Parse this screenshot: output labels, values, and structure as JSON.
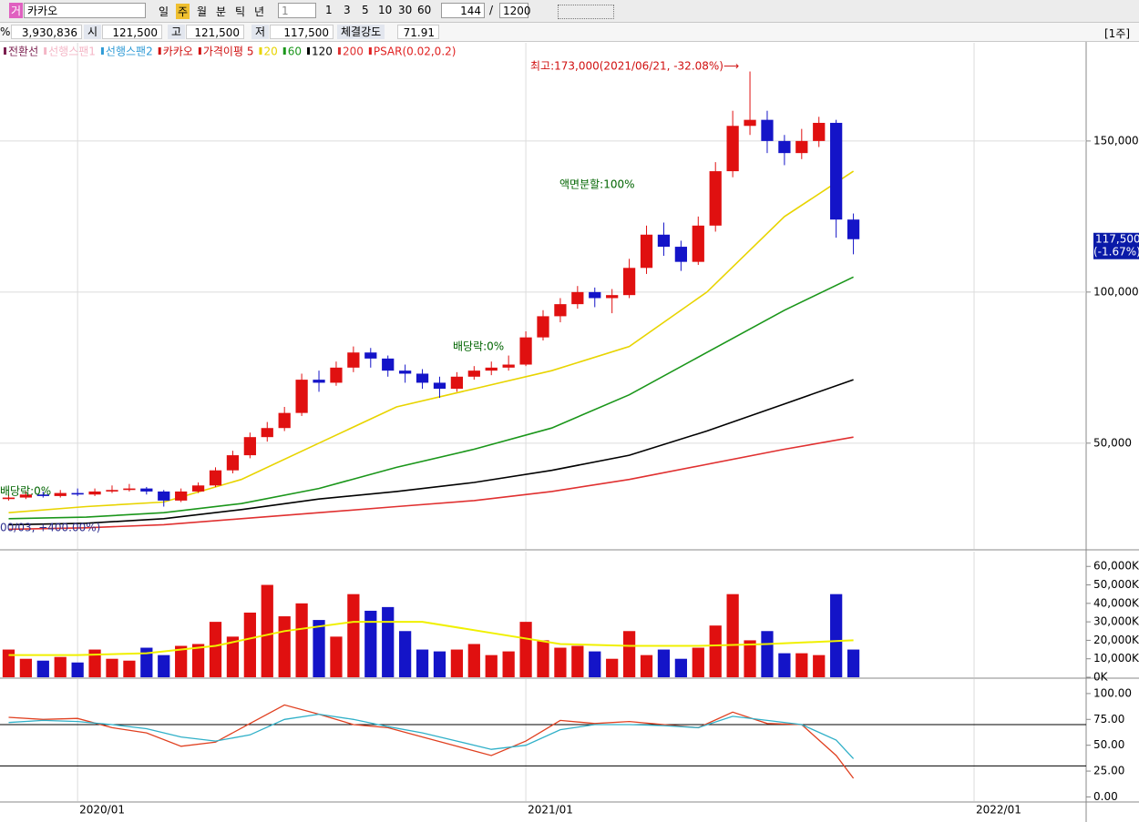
{
  "toolbar": {
    "market": "거",
    "name": "카카오",
    "periods": [
      "일",
      "주",
      "월",
      "분",
      "틱",
      "년"
    ],
    "multiplier": "1",
    "intervals": [
      "1",
      "3",
      "5",
      "10",
      "30",
      "60"
    ],
    "count": "144",
    "separator": "/",
    "total": "1200"
  },
  "info_bar": {
    "pct": "%",
    "volume": "3,930,836",
    "open_label": "시",
    "open": "121,500",
    "high_label": "고",
    "high": "121,500",
    "low_label": "저",
    "low": "117,500",
    "strength_label": "체결강도",
    "strength": "71.91",
    "unit": "[1주]"
  },
  "chart_data": [
    {
      "type": "candlestick",
      "up_color": "#e01010",
      "down_color": "#1414c8",
      "legend_before": [
        {
          "name": "전환선",
          "color": "#7b1f4f"
        },
        {
          "name": "선행스팬1",
          "color": "#f4b6c6"
        },
        {
          "name": "선행스팬2",
          "color": "#2f9bd6"
        },
        {
          "name": "카카오",
          "color": "#d01010"
        },
        {
          "name": "가격이평 5",
          "color": "#d01010"
        }
      ],
      "legend_after": [
        {
          "name": "PSAR(0.02,0.2)",
          "color": "#e02020"
        }
      ],
      "annotations": [
        {
          "text": "최고:173,000(2021/06/21, -32.08%)⟶",
          "color": "#d01010"
        },
        {
          "text": "액면분할:100%",
          "color": "#006400"
        },
        {
          "text": "배당락:0%",
          "color": "#006400"
        },
        {
          "text": "배당락:0%",
          "color": "#006400"
        },
        {
          "text": "00/03, +400.00%)",
          "color": "#303090"
        }
      ],
      "xlim": [
        2,
        128
      ],
      "x": [
        3,
        5,
        7,
        9,
        11,
        13,
        15,
        17,
        19,
        21,
        23,
        25,
        27,
        29,
        31,
        33,
        35,
        37,
        39,
        41,
        43,
        45,
        47,
        49,
        51,
        53,
        55,
        57,
        59,
        61,
        63,
        65,
        67,
        69,
        71,
        73,
        75,
        77,
        79,
        81,
        83,
        85,
        87,
        89,
        91,
        93,
        95,
        97,
        99,
        101
      ],
      "open": [
        31500,
        32000,
        33000,
        32500,
        33500,
        33000,
        34000,
        34500,
        35000,
        34000,
        31000,
        34000,
        36000,
        41000,
        46000,
        52000,
        55000,
        60000,
        71000,
        70000,
        75000,
        80000,
        78000,
        74000,
        73000,
        70000,
        68000,
        72000,
        74000,
        75000,
        76000,
        85000,
        92000,
        96000,
        100000,
        98000,
        99000,
        108000,
        119000,
        115000,
        110000,
        122000,
        140000,
        155000,
        157000,
        150000,
        146000,
        150000,
        156000,
        124000
      ],
      "high": [
        33000,
        34000,
        34000,
        34500,
        35000,
        35000,
        36000,
        36500,
        35500,
        34500,
        35000,
        37000,
        42000,
        47500,
        53500,
        57000,
        62000,
        73000,
        74000,
        77000,
        82000,
        81500,
        79000,
        76000,
        74500,
        72000,
        73500,
        75500,
        77000,
        79000,
        87000,
        94000,
        98000,
        102000,
        101500,
        101000,
        111000,
        122000,
        123000,
        117000,
        125000,
        143000,
        160000,
        173000,
        160000,
        152000,
        154000,
        158000,
        157000,
        126000
      ],
      "low": [
        31000,
        31500,
        32000,
        32000,
        32500,
        32500,
        33500,
        34000,
        33000,
        29000,
        30500,
        33500,
        35500,
        40000,
        45000,
        50500,
        54000,
        59000,
        67000,
        69000,
        73500,
        75000,
        72000,
        70000,
        68000,
        65000,
        67000,
        71000,
        72500,
        74000,
        75500,
        84000,
        90000,
        94500,
        95000,
        93000,
        98000,
        106000,
        112000,
        107000,
        109000,
        120000,
        138000,
        152000,
        146000,
        142000,
        144000,
        148000,
        118000,
        112500
      ],
      "close": [
        32000,
        33000,
        32500,
        33500,
        33000,
        34000,
        34500,
        35000,
        34000,
        31000,
        34000,
        36000,
        41000,
        46000,
        52000,
        55000,
        60000,
        71000,
        70000,
        75000,
        80000,
        78000,
        74000,
        73000,
        70000,
        68000,
        72000,
        74000,
        75000,
        76000,
        85000,
        92000,
        96000,
        100000,
        98000,
        99000,
        108000,
        119000,
        115000,
        110000,
        122000,
        140000,
        155000,
        157000,
        150000,
        146000,
        150000,
        156000,
        124000,
        117500
      ],
      "series": [
        {
          "name": "20",
          "color": "#e8d400",
          "x": [
            3,
            12,
            21,
            30,
            39,
            48,
            57,
            66,
            75,
            84,
            93,
            101
          ],
          "values": [
            27000,
            29000,
            30500,
            38000,
            50000,
            62000,
            68000,
            74000,
            82000,
            100000,
            125000,
            140000
          ]
        },
        {
          "name": "60",
          "color": "#1a961a",
          "x": [
            3,
            12,
            21,
            30,
            39,
            48,
            57,
            66,
            75,
            84,
            93,
            101
          ],
          "values": [
            25000,
            25500,
            27000,
            30000,
            35000,
            42000,
            48000,
            55000,
            66000,
            80000,
            94000,
            105000
          ]
        },
        {
          "name": "120",
          "color": "#000000",
          "x": [
            3,
            12,
            21,
            30,
            39,
            48,
            57,
            66,
            75,
            84,
            93,
            101
          ],
          "values": [
            23000,
            23500,
            25000,
            28000,
            31500,
            34000,
            37000,
            41000,
            46000,
            54000,
            63000,
            71000
          ]
        },
        {
          "name": "200",
          "color": "#e03030",
          "x": [
            3,
            12,
            21,
            30,
            39,
            48,
            57,
            66,
            75,
            84,
            93,
            101
          ],
          "values": [
            21500,
            22000,
            23000,
            25000,
            27000,
            29000,
            31000,
            34000,
            38000,
            43000,
            48000,
            52000
          ]
        }
      ],
      "last_price": {
        "value": 117500,
        "label": "117,500"
      },
      "last_change": "(-1.67%)",
      "ylim": [
        15000,
        182500
      ],
      "yticks": [
        {
          "value": 50000,
          "label": "50,000"
        },
        {
          "value": 100000,
          "label": "100,000"
        },
        {
          "value": 150000,
          "label": "150,000"
        }
      ],
      "grid": true
    },
    {
      "type": "bar",
      "xlim": [
        2,
        128
      ],
      "x": [
        3,
        5,
        7,
        9,
        11,
        13,
        15,
        17,
        19,
        21,
        23,
        25,
        27,
        29,
        31,
        33,
        35,
        37,
        39,
        41,
        43,
        45,
        47,
        49,
        51,
        53,
        55,
        57,
        59,
        61,
        63,
        65,
        67,
        69,
        71,
        73,
        75,
        77,
        79,
        81,
        83,
        85,
        87,
        89,
        91,
        93,
        95,
        97,
        99,
        101
      ],
      "values": [
        15000,
        10000,
        9000,
        11000,
        8000,
        15000,
        10000,
        9000,
        16000,
        12000,
        17000,
        18000,
        30000,
        22000,
        35000,
        50000,
        33000,
        40000,
        31000,
        22000,
        45000,
        36000,
        38000,
        25000,
        15000,
        14000,
        15000,
        18000,
        12000,
        14000,
        30000,
        20000,
        16000,
        17000,
        14000,
        10000,
        25000,
        12000,
        15000,
        10000,
        16000,
        28000,
        45000,
        20000,
        25000,
        13000,
        13000,
        12000,
        45000,
        15000
      ],
      "series": [
        {
          "color": "#f0f000",
          "x": [
            3,
            11,
            19,
            27,
            35,
            43,
            51,
            59,
            67,
            75,
            83,
            91,
            101
          ],
          "values": [
            12000,
            12000,
            13000,
            17000,
            25000,
            30000,
            30000,
            24000,
            18000,
            17000,
            17000,
            18000,
            20000
          ]
        }
      ],
      "ylim": [
        0,
        68000
      ],
      "yticks": [
        {
          "value": 0,
          "label": "0K"
        },
        {
          "value": 10000,
          "label": "10,000K"
        },
        {
          "value": 20000,
          "label": "20,000K"
        },
        {
          "value": 30000,
          "label": "30,000K"
        },
        {
          "value": 40000,
          "label": "40,000K"
        },
        {
          "value": 50000,
          "label": "50,000K"
        },
        {
          "value": 60000,
          "label": "60,000K"
        }
      ]
    },
    {
      "type": "line",
      "xlim": [
        2,
        128
      ],
      "xticks": [
        {
          "value": 11,
          "label": "2020/01"
        },
        {
          "value": 63,
          "label": "2021/01"
        },
        {
          "value": 115,
          "label": "2022/01"
        }
      ],
      "series": [
        {
          "color": "#e04020",
          "x": [
            3,
            7,
            11,
            15,
            19,
            23,
            27,
            31,
            35,
            39,
            43,
            47,
            51,
            55,
            59,
            63,
            67,
            71,
            75,
            79,
            83,
            87,
            91,
            95,
            99,
            101
          ],
          "values": [
            77,
            75,
            76,
            67,
            62,
            49,
            53,
            71,
            89,
            80,
            70,
            67,
            58,
            49,
            40,
            54,
            74,
            71,
            73,
            70,
            67,
            82,
            71,
            70,
            40,
            18
          ]
        },
        {
          "color": "#30b0c8",
          "x": [
            3,
            7,
            11,
            15,
            19,
            23,
            27,
            31,
            35,
            39,
            43,
            47,
            51,
            55,
            59,
            63,
            67,
            71,
            75,
            79,
            83,
            87,
            91,
            95,
            99,
            101
          ],
          "values": [
            72,
            74,
            73,
            70,
            66,
            58,
            54,
            60,
            75,
            80,
            75,
            68,
            62,
            54,
            46,
            50,
            65,
            70,
            70,
            69,
            67,
            78,
            74,
            70,
            55,
            37
          ]
        }
      ],
      "hlines": [
        70,
        30
      ],
      "ylim": [
        -4,
        114
      ],
      "yticks": [
        {
          "value": 0,
          "label": "0.00"
        },
        {
          "value": 25,
          "label": "25.00"
        },
        {
          "value": 50,
          "label": "50.00"
        },
        {
          "value": 75,
          "label": "75.00"
        },
        {
          "value": 100,
          "label": "100.00"
        }
      ]
    }
  ]
}
